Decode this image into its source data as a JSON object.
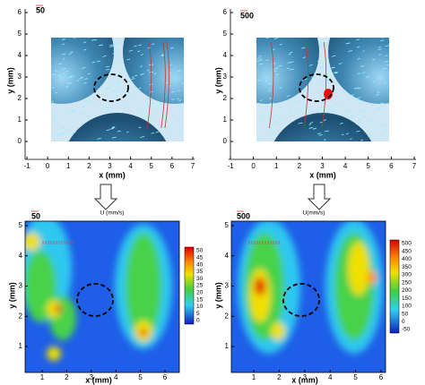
{
  "panels": [
    {
      "vector_scale": "50",
      "xlabel": "x (mm)",
      "ylabel": "y (mm)",
      "xticks": [
        -1,
        0,
        1,
        2,
        3,
        4,
        5,
        6,
        7
      ],
      "yticks": [
        0,
        1,
        2,
        3,
        4,
        5,
        6
      ]
    },
    {
      "vector_scale": "500",
      "xlabel": "x (mm)",
      "ylabel": "y (mm)",
      "xticks": [
        -1,
        0,
        1,
        2,
        3,
        4,
        5,
        6,
        7
      ],
      "yticks": [
        0,
        1,
        2,
        3,
        4,
        5,
        6
      ]
    },
    {
      "vector_scale": "50",
      "title": "U (mm/s)",
      "xlabel": "x (mm)",
      "ylabel": "y (mm)",
      "xticks": [
        1,
        2,
        3,
        4,
        5,
        6
      ],
      "yticks": [
        1,
        2,
        3,
        4,
        5
      ],
      "colorbar": [
        50,
        45,
        40,
        35,
        30,
        25,
        20,
        15,
        10,
        5,
        0
      ]
    },
    {
      "vector_scale": "500",
      "title": "U(mm/s)",
      "xlabel": "x (mm)",
      "ylabel": "y (mm)",
      "xticks": [
        1,
        2,
        3,
        4,
        5,
        6
      ],
      "yticks": [
        1,
        2,
        3,
        4,
        5
      ],
      "colorbar": [
        500,
        450,
        400,
        350,
        300,
        250,
        200,
        150,
        100,
        50,
        0,
        -50
      ]
    }
  ]
}
